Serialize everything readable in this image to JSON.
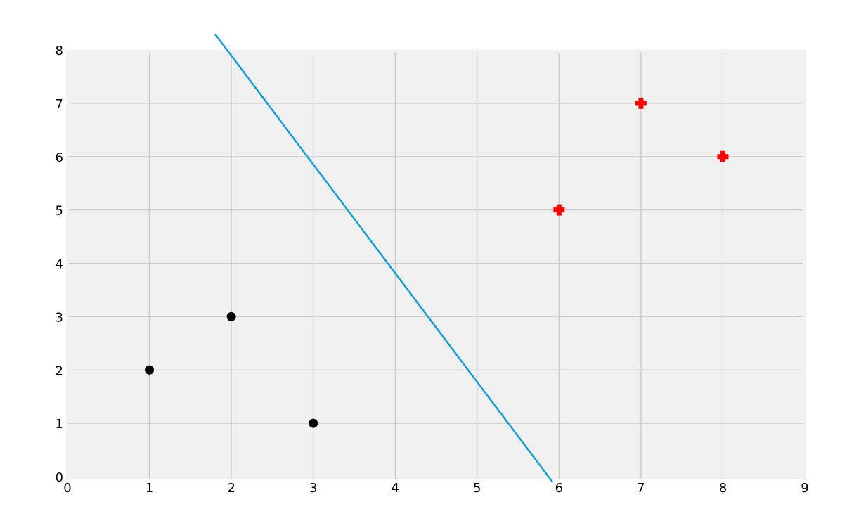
{
  "chart_data": {
    "type": "scatter",
    "title": "",
    "xlabel": "",
    "ylabel": "",
    "xlim": [
      0,
      9
    ],
    "ylim": [
      0,
      8
    ],
    "xticks": [
      "0",
      "1",
      "2",
      "3",
      "4",
      "5",
      "6",
      "7",
      "8",
      "9"
    ],
    "yticks": [
      "0",
      "1",
      "2",
      "3",
      "4",
      "5",
      "6",
      "7",
      "8"
    ],
    "grid": true,
    "background_color": "#f0f0f0",
    "grid_color": "#cbcbcb",
    "series": [
      {
        "marker": "circle",
        "color": "#000000",
        "points": [
          [
            1,
            2
          ],
          [
            2,
            3
          ],
          [
            3,
            1
          ]
        ]
      },
      {
        "marker": "plus",
        "color": "#ff0000",
        "points": [
          [
            6,
            5
          ],
          [
            7,
            7
          ],
          [
            8,
            6
          ]
        ]
      }
    ],
    "lines": [
      {
        "color": "#0f9ddb",
        "points": [
          [
            1.8,
            8.3
          ],
          [
            5.92,
            -0.1
          ]
        ]
      }
    ]
  }
}
